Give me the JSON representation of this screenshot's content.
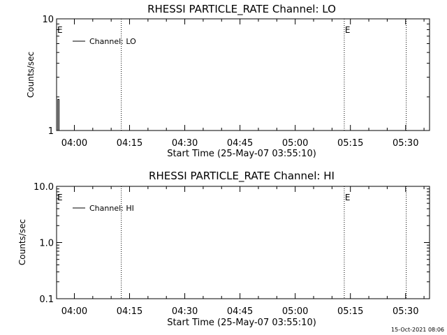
{
  "footer": {
    "timestamp": "15-Oct-2021 08:06"
  },
  "chart_data": [
    {
      "type": "line",
      "title": "RHESSI PARTICLE_RATE Channel: LO",
      "xlabel": "Start Time (25-May-07 03:55:10)",
      "ylabel": "Counts/sec",
      "y_scale": "log",
      "ylim": [
        1,
        10
      ],
      "xlim": [
        "03:55:10",
        "05:36:30"
      ],
      "yticks": [
        {
          "value": 1,
          "label": "1"
        },
        {
          "value": 10,
          "label": "10"
        }
      ],
      "xticks": [
        {
          "time": "04:00",
          "label": "04:00"
        },
        {
          "time": "04:15",
          "label": "04:15"
        },
        {
          "time": "04:30",
          "label": "04:30"
        },
        {
          "time": "04:45",
          "label": "04:45"
        },
        {
          "time": "05:00",
          "label": "05:00"
        },
        {
          "time": "05:15",
          "label": "05:15"
        },
        {
          "time": "05:30",
          "label": "05:30"
        }
      ],
      "vlines": [
        "04:12:45",
        "05:13:20",
        "05:30:10"
      ],
      "markers": [
        {
          "label": "E",
          "time": "03:55:10"
        },
        {
          "label": "E",
          "time": "05:13:20"
        }
      ],
      "legend": {
        "position": "top-left",
        "entries": [
          "Channel: LO"
        ]
      },
      "series": [
        {
          "name": "Channel: LO",
          "x": [
            "03:55:30",
            "03:55:30",
            "03:55:50",
            "03:55:50"
          ],
          "values": [
            1.0,
            1.9,
            1.9,
            1.0
          ]
        }
      ]
    },
    {
      "type": "line",
      "title": "RHESSI PARTICLE_RATE Channel: HI",
      "xlabel": "Start Time (25-May-07 03:55:10)",
      "ylabel": "Counts/sec",
      "y_scale": "log",
      "ylim": [
        0.1,
        10
      ],
      "xlim": [
        "03:55:10",
        "05:36:30"
      ],
      "yticks": [
        {
          "value": 0.1,
          "label": "0.1"
        },
        {
          "value": 1.0,
          "label": "1.0"
        },
        {
          "value": 10.0,
          "label": "10.0"
        }
      ],
      "xticks": [
        {
          "time": "04:00",
          "label": "04:00"
        },
        {
          "time": "04:15",
          "label": "04:15"
        },
        {
          "time": "04:30",
          "label": "04:30"
        },
        {
          "time": "04:45",
          "label": "04:45"
        },
        {
          "time": "05:00",
          "label": "05:00"
        },
        {
          "time": "05:15",
          "label": "05:15"
        },
        {
          "time": "05:30",
          "label": "05:30"
        }
      ],
      "vlines": [
        "04:12:45",
        "05:13:20",
        "05:30:10"
      ],
      "markers": [
        {
          "label": "E",
          "time": "03:55:10"
        },
        {
          "label": "E",
          "time": "05:13:20"
        }
      ],
      "legend": {
        "position": "top-left",
        "entries": [
          "Channel: HI"
        ]
      },
      "series": [
        {
          "name": "Channel: HI",
          "x": [],
          "values": []
        }
      ]
    }
  ]
}
